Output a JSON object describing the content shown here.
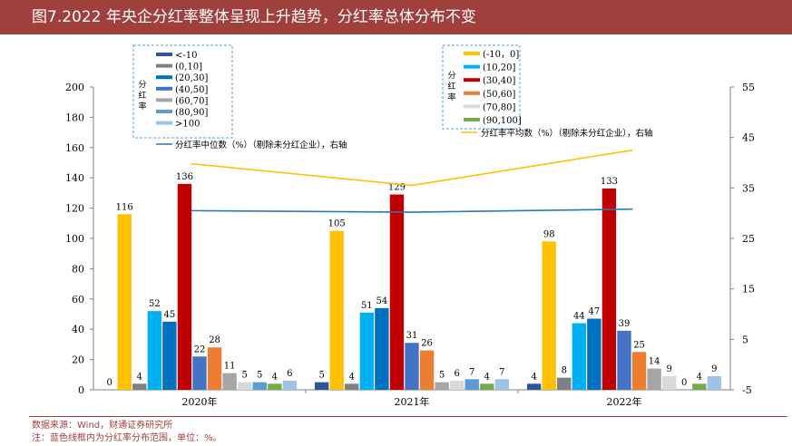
{
  "header": {
    "title": "图7.2022 年央企分红率整体呈现上升趋势，分红率总体分布不变"
  },
  "footer": {
    "source": "数据来源：Wind，财通证券研究所",
    "note": "注：蓝色线框内为分红率分布范围，单位：%。"
  },
  "legend_left": {
    "box_label": "分红率"
  },
  "legend_right": {
    "box_label": "分红率"
  },
  "chart_data": {
    "type": "bar",
    "title": "2022 年央企分红率整体呈现上升趋势，分红率总体分布不变",
    "categories": [
      "2020年",
      "2021年",
      "2022年"
    ],
    "ylim": [
      0,
      200
    ],
    "yticks": [
      "0",
      "20",
      "40",
      "60",
      "80",
      "100",
      "120",
      "140",
      "160",
      "180",
      "200"
    ],
    "y2lim": [
      -5,
      55
    ],
    "y2ticks": [
      "-5",
      "5",
      "15",
      "25",
      "35",
      "45",
      "55"
    ],
    "series": [
      {
        "name": "<-10",
        "color": "#2e54a0",
        "values": [
          0,
          5,
          4
        ]
      },
      {
        "name": "(-10，0]",
        "color": "#ffc000",
        "values": [
          116,
          105,
          98
        ]
      },
      {
        "name": "(0,10]",
        "color": "#808080",
        "values": [
          4,
          4,
          8
        ]
      },
      {
        "name": "(10,20]",
        "color": "#00b0f0",
        "values": [
          52,
          51,
          44
        ]
      },
      {
        "name": "(20,30]",
        "color": "#0070c0",
        "values": [
          45,
          54,
          47
        ]
      },
      {
        "name": "(30,40]",
        "color": "#c00000",
        "values": [
          136,
          129,
          133
        ]
      },
      {
        "name": "(40,50]",
        "color": "#4472c4",
        "values": [
          22,
          31,
          39
        ]
      },
      {
        "name": "(50,60]",
        "color": "#ed7d31",
        "values": [
          28,
          26,
          25
        ]
      },
      {
        "name": "(60,70]",
        "color": "#a5a5a5",
        "values": [
          11,
          5,
          14
        ]
      },
      {
        "name": "(70,80]",
        "color": "#d9d9d9",
        "values": [
          5,
          6,
          9
        ]
      },
      {
        "name": "(80,90]",
        "color": "#5b9bd5",
        "values": [
          5,
          7,
          0
        ]
      },
      {
        "name": "(90,100]",
        "color": "#70ad47",
        "values": [
          4,
          4,
          4
        ]
      },
      {
        "name": ">100",
        "color": "#9dc3e6",
        "values": [
          6,
          7,
          9
        ]
      }
    ],
    "lines": [
      {
        "name": "分红率中位数（%）（剔除未分红企业），右轴",
        "color": "#2e75b6",
        "values": [
          30.5,
          30.2,
          30.8
        ]
      },
      {
        "name": "分红率平均数（%）（剔除未分红企业），右轴",
        "color": "#ffc000",
        "values": [
          39.8,
          35.5,
          42.5
        ]
      }
    ],
    "legend_left_order": [
      "<-10",
      "(0,10]",
      "(20,30]",
      "(40,50]",
      "(60,70]",
      "(80,90]",
      ">100"
    ],
    "legend_right_order": [
      "(-10，0]",
      "(10,20]",
      "(30,40]",
      "(50,60]",
      "(70,80]",
      "(90,100]"
    ]
  }
}
